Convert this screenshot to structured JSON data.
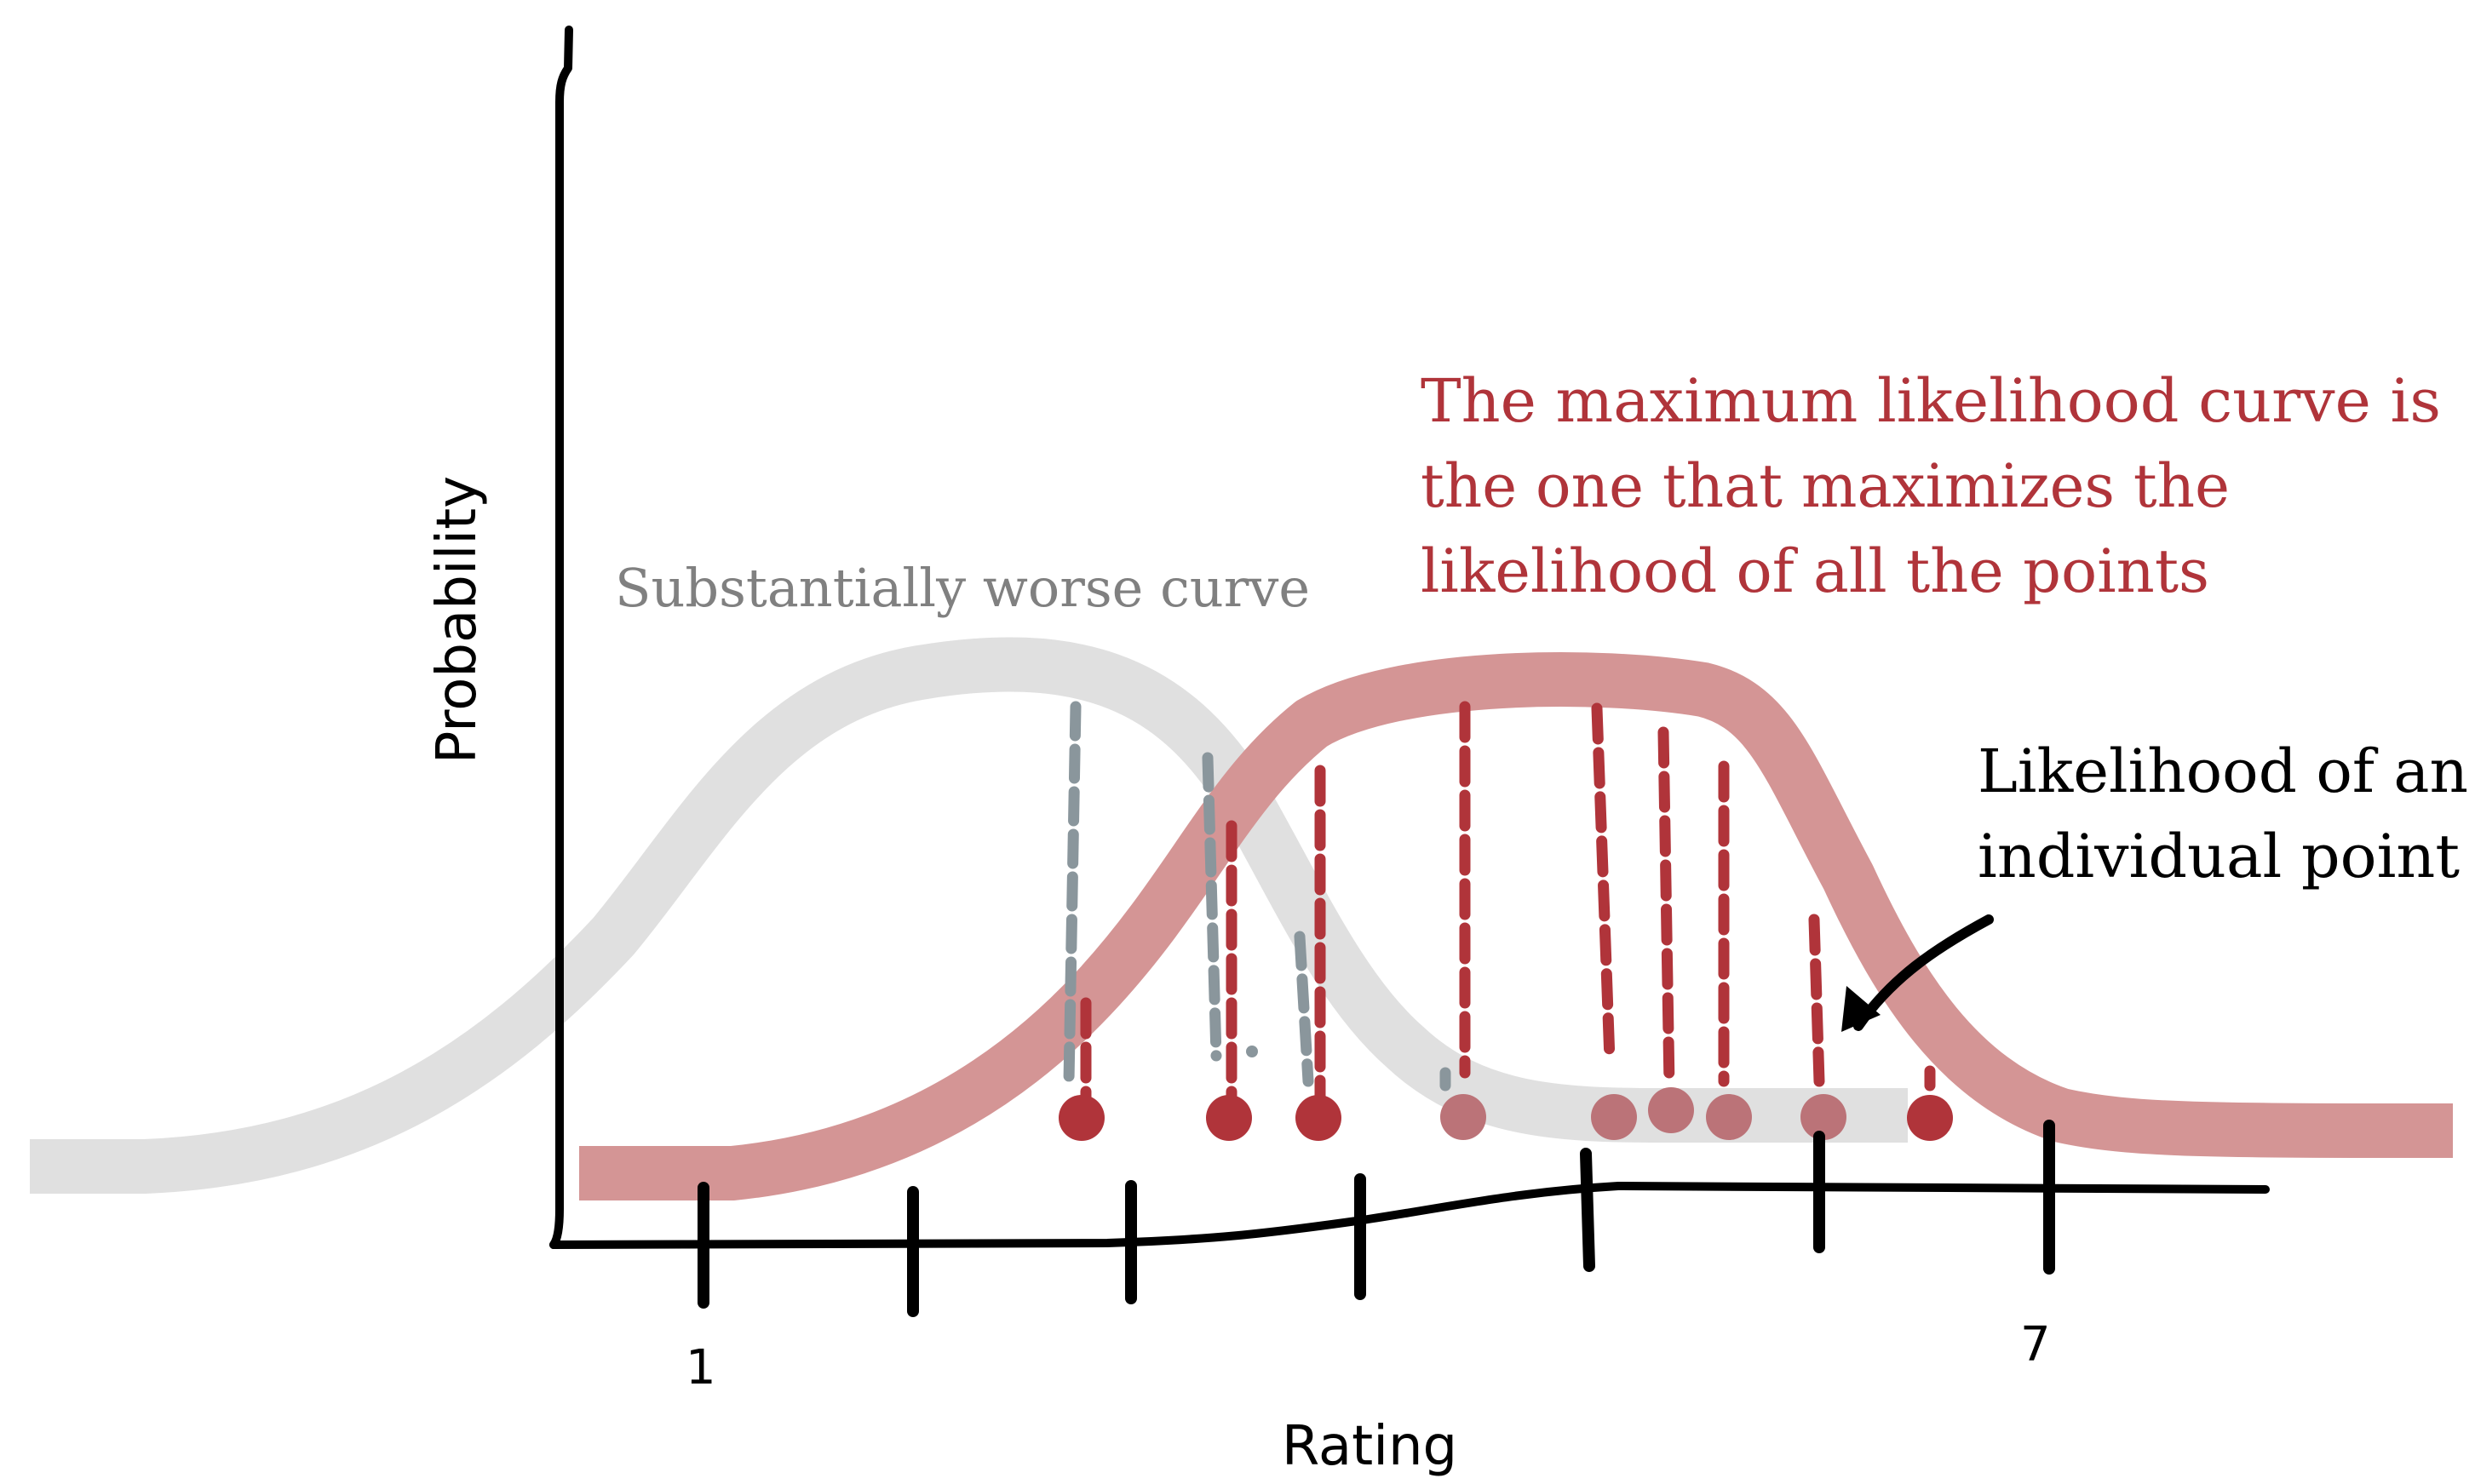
{
  "axes": {
    "ylabel": "Probability",
    "xlabel": "Rating",
    "tick_first": "1",
    "tick_last": "7"
  },
  "annotations": {
    "worse_curve": "Substantially worse curve",
    "mle_line1": "The maximum likelihood curve is",
    "mle_line2": "the one that maximizes the",
    "mle_line3": "likelihood of all the points",
    "point_line1": "Likelihood of an",
    "point_line2": "individual point"
  },
  "colors": {
    "axis": "#000000",
    "worse_curve": "#e0e0e0",
    "mle_curve": "#d49595",
    "point_red": "#b0343a",
    "dash_gray": "#8a969c",
    "text_red": "#b0343a",
    "text_gray": "#808080"
  }
}
